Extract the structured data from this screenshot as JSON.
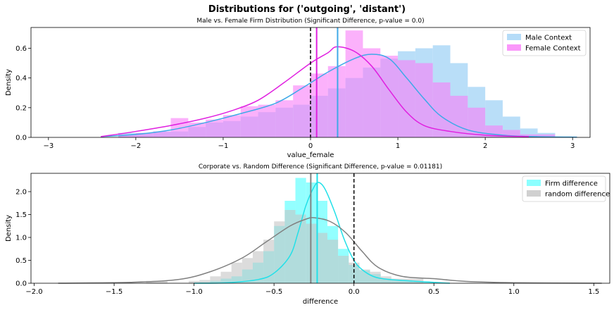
{
  "figure": {
    "title": "Distributions for ('outgoing', 'distant')"
  },
  "chart_data": [
    {
      "type": "histogram-kde",
      "title": "Male vs. Female Firm Distribution (Significant Difference, p-value = 0.0)",
      "xlabel": "value_female",
      "ylabel": "Density",
      "xlim": [
        -3.2,
        3.2
      ],
      "ylim": [
        0,
        0.74
      ],
      "xticks": [
        -3,
        -2,
        -1,
        0,
        1,
        2,
        3
      ],
      "yticks": [
        0.0,
        0.2,
        0.4,
        0.6
      ],
      "yticks_labels": [
        "0.0",
        "0.2",
        "0.4",
        "0.6"
      ],
      "legend_position": "upper right",
      "bin_start": -2.2,
      "bin_width": 0.2,
      "series": [
        {
          "name": "Male Context",
          "color": "#add8f7",
          "line_color": "#3fa9e8",
          "values": [
            0.03,
            0.03,
            0.04,
            0.04,
            0.07,
            0.1,
            0.11,
            0.14,
            0.17,
            0.2,
            0.22,
            0.28,
            0.33,
            0.4,
            0.47,
            0.53,
            0.58,
            0.6,
            0.62,
            0.5,
            0.34,
            0.25,
            0.14,
            0.06,
            0.03
          ],
          "kde": [
            [
              -2.4,
              0.005
            ],
            [
              -2.0,
              0.02
            ],
            [
              -1.6,
              0.05
            ],
            [
              -1.2,
              0.1
            ],
            [
              -0.8,
              0.16
            ],
            [
              -0.4,
              0.23
            ],
            [
              -0.1,
              0.33
            ],
            [
              0.2,
              0.44
            ],
            [
              0.5,
              0.53
            ],
            [
              0.7,
              0.56
            ],
            [
              0.9,
              0.53
            ],
            [
              1.1,
              0.4
            ],
            [
              1.3,
              0.26
            ],
            [
              1.5,
              0.14
            ],
            [
              1.8,
              0.05
            ],
            [
              2.2,
              0.015
            ],
            [
              2.6,
              0.005
            ],
            [
              3.05,
              0.002
            ]
          ],
          "vline": 0.31
        },
        {
          "name": "Female Context",
          "color": "#f97df9",
          "line_color": "#e020e0",
          "values": [
            0.02,
            0.03,
            0.04,
            0.13,
            0.1,
            0.12,
            0.15,
            0.21,
            0.22,
            0.25,
            0.35,
            0.43,
            0.48,
            0.72,
            0.6,
            0.55,
            0.52,
            0.5,
            0.37,
            0.28,
            0.2,
            0.08,
            0.05,
            0.02,
            0.02
          ],
          "kde": [
            [
              -2.4,
              0.005
            ],
            [
              -2.0,
              0.04
            ],
            [
              -1.6,
              0.08
            ],
            [
              -1.2,
              0.13
            ],
            [
              -0.9,
              0.18
            ],
            [
              -0.6,
              0.25
            ],
            [
              -0.3,
              0.37
            ],
            [
              0.0,
              0.5
            ],
            [
              0.2,
              0.57
            ],
            [
              0.3,
              0.61
            ],
            [
              0.5,
              0.58
            ],
            [
              0.7,
              0.48
            ],
            [
              0.9,
              0.32
            ],
            [
              1.1,
              0.17
            ],
            [
              1.3,
              0.08
            ],
            [
              1.6,
              0.04
            ],
            [
              2.0,
              0.015
            ],
            [
              2.5,
              0.005
            ]
          ],
          "vline": 0.07
        }
      ],
      "zero_line": 0.0
    },
    {
      "type": "histogram-kde",
      "title": "Corporate vs. Random Difference (Significant Difference, p-value = 0.01181)",
      "xlabel": "difference",
      "ylabel": "Density",
      "xlim": [
        -2.02,
        1.6
      ],
      "ylim": [
        0,
        2.4
      ],
      "xticks": [
        -2.0,
        -1.5,
        -1.0,
        -0.5,
        0.0,
        0.5,
        1.0,
        1.5
      ],
      "xticks_labels": [
        "−2.0",
        "−1.5",
        "−1.0",
        "−0.5",
        "0.0",
        "0.5",
        "1.0",
        "1.5"
      ],
      "yticks": [
        0.0,
        0.5,
        1.0,
        1.5,
        2.0
      ],
      "yticks_labels": [
        "0.0",
        "0.5",
        "1.0",
        "1.5",
        "2.0"
      ],
      "legend_position": "upper right",
      "bin_start": -1.3,
      "bin_width": 0.0667,
      "series": [
        {
          "name": "Firm difference",
          "color": "#80ffff",
          "line_color": "#22e0e8",
          "values": [
            0.0,
            0.0,
            0.0,
            0.0,
            0.0,
            0.02,
            0.05,
            0.1,
            0.15,
            0.3,
            0.45,
            0.7,
            1.25,
            1.8,
            2.3,
            2.2,
            1.8,
            1.25,
            0.75,
            0.4,
            0.28,
            0.2,
            0.1,
            0.07,
            0.05,
            0.03,
            0.02
          ],
          "kde": [
            [
              -1.0,
              0.0
            ],
            [
              -0.8,
              0.01
            ],
            [
              -0.6,
              0.08
            ],
            [
              -0.5,
              0.22
            ],
            [
              -0.4,
              0.6
            ],
            [
              -0.35,
              1.1
            ],
            [
              -0.3,
              1.7
            ],
            [
              -0.25,
              2.1
            ],
            [
              -0.22,
              2.2
            ],
            [
              -0.18,
              2.05
            ],
            [
              -0.12,
              1.55
            ],
            [
              -0.06,
              0.95
            ],
            [
              0.0,
              0.5
            ],
            [
              0.05,
              0.3
            ],
            [
              0.12,
              0.15
            ],
            [
              0.2,
              0.09
            ],
            [
              0.35,
              0.05
            ],
            [
              0.5,
              0.02
            ],
            [
              0.6,
              0.0
            ]
          ],
          "vline": -0.23
        },
        {
          "name": "random difference",
          "color": "#c4c4c4",
          "line_color": "#808080",
          "values": [
            0.05,
            0.05,
            0.0,
            0.0,
            0.05,
            0.07,
            0.15,
            0.25,
            0.45,
            0.55,
            0.7,
            0.95,
            1.35,
            1.6,
            1.5,
            1.3,
            1.1,
            0.95,
            0.6,
            0.45,
            0.3,
            0.25,
            0.15,
            0.1,
            0.1,
            0.1,
            0.0
          ],
          "kde": [
            [
              -1.85,
              0.0
            ],
            [
              -1.4,
              0.02
            ],
            [
              -1.1,
              0.08
            ],
            [
              -0.9,
              0.25
            ],
            [
              -0.7,
              0.55
            ],
            [
              -0.55,
              0.9
            ],
            [
              -0.4,
              1.25
            ],
            [
              -0.3,
              1.4
            ],
            [
              -0.25,
              1.43
            ],
            [
              -0.15,
              1.35
            ],
            [
              -0.05,
              1.1
            ],
            [
              0.05,
              0.7
            ],
            [
              0.15,
              0.35
            ],
            [
              0.3,
              0.15
            ],
            [
              0.5,
              0.1
            ],
            [
              0.7,
              0.04
            ],
            [
              1.0,
              0.01
            ],
            [
              1.55,
              0.0
            ]
          ],
          "vline": -0.27
        }
      ],
      "zero_line": 0.0
    }
  ]
}
